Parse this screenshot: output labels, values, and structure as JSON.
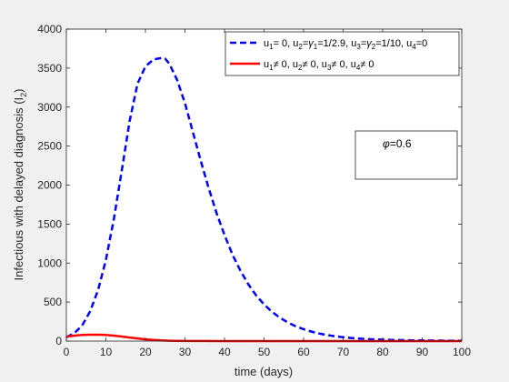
{
  "chart_data": {
    "type": "line",
    "xlabel": "time (days)",
    "ylabel": "Infectious with delayed diagnosis (I",
    "ylabel_sub": "2",
    "ylabel_close": ")",
    "xlim": [
      0,
      100
    ],
    "ylim": [
      0,
      4000
    ],
    "xticks": [
      0,
      10,
      20,
      30,
      40,
      50,
      60,
      70,
      80,
      90,
      100
    ],
    "yticks": [
      0,
      500,
      1000,
      1500,
      2000,
      2500,
      3000,
      3500,
      4000
    ],
    "grid": false,
    "legend_position": "top-right",
    "annotation": {
      "symbol": "φ",
      "text": "=0.6"
    },
    "series": [
      {
        "legend_runs": [
          [
            "u",
            ""
          ],
          [
            "1",
            "sub"
          ],
          [
            "= 0, u",
            ""
          ],
          [
            "2",
            "sub"
          ],
          [
            "=",
            ""
          ],
          [
            "γ",
            "greek"
          ],
          [
            "1",
            "sub"
          ],
          [
            "=1/2.9, u",
            ""
          ],
          [
            "3",
            "sub"
          ],
          [
            "=",
            ""
          ],
          [
            "γ",
            "greek"
          ],
          [
            "2",
            "sub"
          ],
          [
            "=1/10, u",
            ""
          ],
          [
            "4",
            "sub"
          ],
          [
            "=0",
            ""
          ]
        ],
        "color": "#0000ff",
        "style": "dashed",
        "x": [
          0,
          2,
          4,
          6,
          8,
          10,
          12,
          14,
          16,
          18,
          20,
          22,
          24,
          25,
          26,
          28,
          30,
          32,
          34,
          36,
          38,
          40,
          42,
          44,
          46,
          48,
          50,
          52,
          54,
          56,
          58,
          60,
          62,
          64,
          66,
          68,
          70,
          72,
          74,
          76,
          78,
          80,
          82,
          84,
          86,
          88,
          90,
          92,
          94,
          96,
          98,
          100
        ],
        "y": [
          50,
          100,
          200,
          380,
          650,
          1040,
          1560,
          2180,
          2820,
          3300,
          3520,
          3610,
          3630,
          3620,
          3560,
          3350,
          3050,
          2680,
          2310,
          1960,
          1640,
          1360,
          1110,
          905,
          730,
          585,
          470,
          375,
          300,
          240,
          190,
          152,
          121,
          96,
          77,
          61,
          49,
          40,
          32,
          26,
          22,
          18,
          15,
          13,
          11,
          9,
          8,
          7,
          6,
          5,
          4,
          4
        ]
      },
      {
        "legend_runs": [
          [
            "u",
            ""
          ],
          [
            "1",
            "sub"
          ],
          [
            "≠ 0, u",
            ""
          ],
          [
            "2",
            "sub"
          ],
          [
            "≠ 0, u",
            ""
          ],
          [
            "3",
            "sub"
          ],
          [
            "≠ 0, u",
            ""
          ],
          [
            "4",
            "sub"
          ],
          [
            "≠ 0",
            ""
          ]
        ],
        "color": "#ff0000",
        "style": "solid",
        "x": [
          0,
          2,
          4,
          6,
          8,
          10,
          12,
          14,
          16,
          18,
          20,
          22,
          24,
          26,
          28,
          30,
          35,
          40,
          50,
          60,
          70,
          80,
          90,
          100
        ],
        "y": [
          55,
          70,
          78,
          82,
          82,
          78,
          70,
          58,
          45,
          33,
          22,
          14,
          9,
          5,
          3,
          2,
          1,
          0,
          0,
          0,
          0,
          0,
          0,
          0
        ]
      }
    ]
  }
}
